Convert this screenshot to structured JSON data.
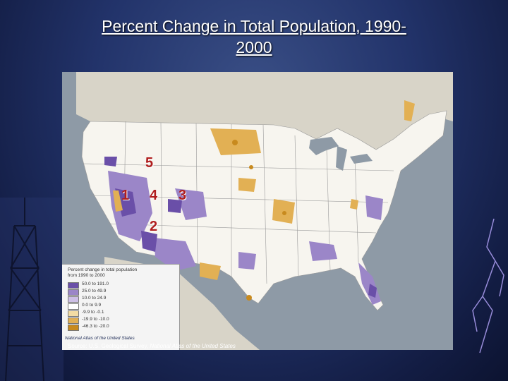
{
  "title": {
    "line1": "Percent Change in Total Population, 1990-",
    "line2": "2000"
  },
  "map": {
    "region_labels": [
      "5",
      "1",
      "4",
      "3",
      "2"
    ],
    "label_color": "#b01e1e",
    "legend": {
      "title_line1": "Percent change in total population",
      "title_line2": "from 1990 to 2000",
      "items": [
        {
          "label": "50.0 to 191.0",
          "color": "#6a4fa8"
        },
        {
          "label": "25.0 to 49.9",
          "color": "#9b86c8"
        },
        {
          "label": "10.0 to 24.9",
          "color": "#cdbfe6"
        },
        {
          "label": "0.0 to 9.9",
          "color": "#ffffff"
        },
        {
          "label": "-9.9 to -0.1",
          "color": "#f3dca4"
        },
        {
          "label": "-19.9 to -10.0",
          "color": "#e2b054"
        },
        {
          "label": "-46.3 to -20.0",
          "color": "#c88a1e"
        }
      ]
    },
    "atlas_credit": "National Atlas of the United States"
  },
  "source": {
    "prefix": "Source: U.S. Geological Survey,",
    "italic": "National Atlas of the United States"
  },
  "colors": {
    "background": "#22336a",
    "ocean": "#8e9aa6",
    "land": "#f7f5ef",
    "canada": "#d8d4c8"
  }
}
